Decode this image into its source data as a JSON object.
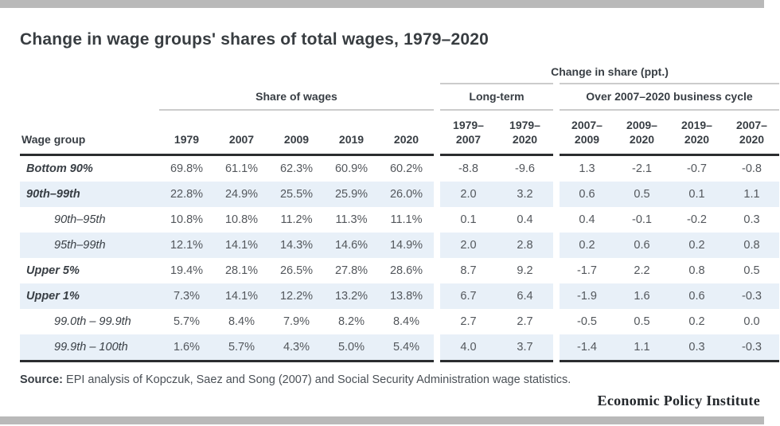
{
  "page": {
    "title": "Change in wage groups' shares of total wages, 1979–2020",
    "source": {
      "label": "Source:",
      "text": "EPI analysis of Kopczuk, Saez and Song (2007) and Social Security Administration wage statistics."
    },
    "brand": "Economic Policy Institute",
    "colors": {
      "border_bar_gray": "#b9b9b9",
      "stripe_blue": "#e8f0f8",
      "rule_dark": "#2b2d2f",
      "rule_light": "#cccccc",
      "title_text": "#383d41",
      "data_text": "#53575c"
    }
  },
  "table": {
    "change_group_header": "Change in share (ppt.)",
    "share_group_header": "Share of wages",
    "longterm_group_header": "Long-term",
    "cycle_group_header": "Over 2007–2020 business cycle",
    "wage_group_header": "Wage group",
    "year_headers": [
      "1979",
      "2007",
      "2009",
      "2019",
      "2020"
    ],
    "range_headers": [
      {
        "top": "1979–",
        "bottom": "2007"
      },
      {
        "top": "1979–",
        "bottom": "2020"
      },
      {
        "top": "2007–",
        "bottom": "2009"
      },
      {
        "top": "2009–",
        "bottom": "2020"
      },
      {
        "top": "2019–",
        "bottom": "2020"
      },
      {
        "top": "2007–",
        "bottom": "2020"
      }
    ]
  },
  "chart_data": {
    "type": "table",
    "title": "Change in wage groups' shares of total wages, 1979–2020",
    "column_groups": [
      "Share of wages",
      "Change in share (ppt.) — Long-term",
      "Change in share (ppt.) — Over 2007–2020 business cycle"
    ],
    "columns": [
      "Wage group",
      "1979",
      "2007",
      "2009",
      "2019",
      "2020",
      "1979–2007",
      "1979–2020",
      "2007–2009",
      "2009–2020",
      "2019–2020",
      "2007–2020"
    ],
    "rows": [
      {
        "label": "Bottom 90%",
        "level": "major",
        "share": [
          "69.8%",
          "61.1%",
          "62.3%",
          "60.9%",
          "60.2%"
        ],
        "longterm": [
          "-8.8",
          "-9.6"
        ],
        "cycle": [
          "1.3",
          "-2.1",
          "-0.7",
          "-0.8"
        ]
      },
      {
        "label": "90th–99th",
        "level": "major",
        "share": [
          "22.8%",
          "24.9%",
          "25.5%",
          "25.9%",
          "26.0%"
        ],
        "longterm": [
          "2.0",
          "3.2"
        ],
        "cycle": [
          "0.6",
          "0.5",
          "0.1",
          "1.1"
        ]
      },
      {
        "label": "90th–95th",
        "level": "sub",
        "share": [
          "10.8%",
          "10.8%",
          "11.2%",
          "11.3%",
          "11.1%"
        ],
        "longterm": [
          "0.1",
          "0.4"
        ],
        "cycle": [
          "0.4",
          "-0.1",
          "-0.2",
          "0.3"
        ]
      },
      {
        "label": "95th–99th",
        "level": "sub",
        "share": [
          "12.1%",
          "14.1%",
          "14.3%",
          "14.6%",
          "14.9%"
        ],
        "longterm": [
          "2.0",
          "2.8"
        ],
        "cycle": [
          "0.2",
          "0.6",
          "0.2",
          "0.8"
        ]
      },
      {
        "label": "Upper 5%",
        "level": "major",
        "share": [
          "19.4%",
          "28.1%",
          "26.5%",
          "27.8%",
          "28.6%"
        ],
        "longterm": [
          "8.7",
          "9.2"
        ],
        "cycle": [
          "-1.7",
          "2.2",
          "0.8",
          "0.5"
        ]
      },
      {
        "label": "Upper 1%",
        "level": "major",
        "share": [
          "7.3%",
          "14.1%",
          "12.2%",
          "13.2%",
          "13.8%"
        ],
        "longterm": [
          "6.7",
          "6.4"
        ],
        "cycle": [
          "-1.9",
          "1.6",
          "0.6",
          "-0.3"
        ]
      },
      {
        "label": "99.0th – 99.9th",
        "level": "sub",
        "share": [
          "5.7%",
          "8.4%",
          "7.9%",
          "8.2%",
          "8.4%"
        ],
        "longterm": [
          "2.7",
          "2.7"
        ],
        "cycle": [
          "-0.5",
          "0.5",
          "0.2",
          "0.0"
        ]
      },
      {
        "label": "99.9th – 100th",
        "level": "sub",
        "share": [
          "1.6%",
          "5.7%",
          "4.3%",
          "5.0%",
          "5.4%"
        ],
        "longterm": [
          "4.0",
          "3.7"
        ],
        "cycle": [
          "-1.4",
          "1.1",
          "0.3",
          "-0.3"
        ]
      }
    ]
  }
}
